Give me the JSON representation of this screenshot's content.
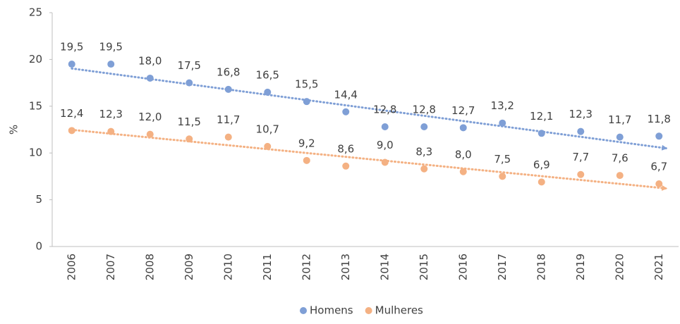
{
  "chart_data": {
    "type": "scatter",
    "categories": [
      "2006",
      "2007",
      "2008",
      "2009",
      "2010",
      "2011",
      "2012",
      "2013",
      "2014",
      "2015",
      "2016",
      "2017",
      "2018",
      "2019",
      "2020",
      "2021"
    ],
    "y_label": "%",
    "ylim": [
      0,
      25
    ],
    "yticks": [
      0,
      5,
      10,
      15,
      20,
      25
    ],
    "trendline": true,
    "legend": "bottom",
    "series": [
      {
        "name": "Homens",
        "color": "#7f9fd6",
        "values": [
          19.5,
          19.5,
          18.0,
          17.5,
          16.8,
          16.5,
          15.5,
          14.4,
          12.8,
          12.8,
          12.7,
          13.2,
          12.1,
          12.3,
          11.7,
          11.8
        ],
        "value_labels": [
          "19,5",
          "19,5",
          "18,0",
          "17,5",
          "16,8",
          "16,5",
          "15,5",
          "14,4",
          "12,8",
          "12,8",
          "12,7",
          "13,2",
          "12,1",
          "12,3",
          "11,7",
          "11,8"
        ]
      },
      {
        "name": "Mulheres",
        "color": "#f4b183",
        "values": [
          12.4,
          12.3,
          12.0,
          11.5,
          11.7,
          10.7,
          9.2,
          8.6,
          9.0,
          8.3,
          8.0,
          7.5,
          6.9,
          7.7,
          7.6,
          6.7
        ],
        "value_labels": [
          "12,4",
          "12,3",
          "12,0",
          "11,5",
          "11,7",
          "10,7",
          "9,2",
          "8,6",
          "9,0",
          "8,3",
          "8,0",
          "7,5",
          "6,9",
          "7,7",
          "7,6",
          "6,7"
        ]
      }
    ]
  }
}
